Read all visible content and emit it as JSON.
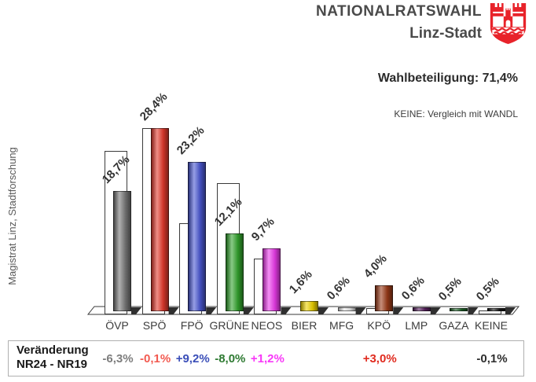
{
  "header": {
    "title": "NATIONALRATSWAHL",
    "subtitle": "Linz-Stadt",
    "crest_color": "#e8232a"
  },
  "stats": {
    "turnout_label": "Wahlbeteiligung:",
    "turnout_value": "71,4%",
    "note": "KEINE: Vergleich mit WANDL"
  },
  "source_label": "Magistrat Linz, Stadtforschung",
  "change_table": {
    "row_label_line1": "Veränderung",
    "row_label_line2": "NR24 - NR19"
  },
  "chart_data": {
    "type": "bar",
    "title": "NATIONALRATSWAHL Linz-Stadt",
    "categories": [
      "ÖVP",
      "SPÖ",
      "FPÖ",
      "GRÜNE",
      "NEOS",
      "BIER",
      "MFG",
      "KPÖ",
      "LMP",
      "GAZA",
      "KEINE"
    ],
    "series": [
      {
        "name": "NR19",
        "values": [
          25.0,
          28.5,
          14.0,
          20.1,
          8.5,
          null,
          null,
          1.0,
          null,
          null,
          0.6
        ]
      },
      {
        "name": "NR24",
        "values": [
          18.7,
          28.4,
          23.2,
          12.1,
          9.7,
          1.6,
          0.6,
          4.0,
          0.6,
          0.5,
          0.5
        ]
      }
    ],
    "value_labels": [
      "18,7%",
      "28,4%",
      "23,2%",
      "12,1%",
      "9,7%",
      "1,6%",
      "0,6%",
      "4,0%",
      "0,6%",
      "0,5%",
      "0,5%"
    ],
    "changes": [
      "-6,3%",
      "-0,1%",
      "+9,2%",
      "-8,0%",
      "+1,2%",
      "",
      "",
      "+3,0%",
      "",
      "",
      "-0,1%"
    ],
    "bar_colors": [
      "#787878",
      "#e53a2e",
      "#4a58d2",
      "#33a42e",
      "#ee3cee",
      "#f0d400",
      "#ededed",
      "#9c3c1a",
      "#5a2060",
      "#1e6428",
      "#161616"
    ],
    "change_colors": [
      "#7d7d7d",
      "#f25a50",
      "#3a4eb8",
      "#2e7a32",
      "#f838f8",
      "",
      "",
      "#e02a1e",
      "",
      "",
      "#2e2e2e"
    ],
    "ylabel": "",
    "ylim": [
      0,
      30
    ],
    "grid": false,
    "legend": "none"
  }
}
